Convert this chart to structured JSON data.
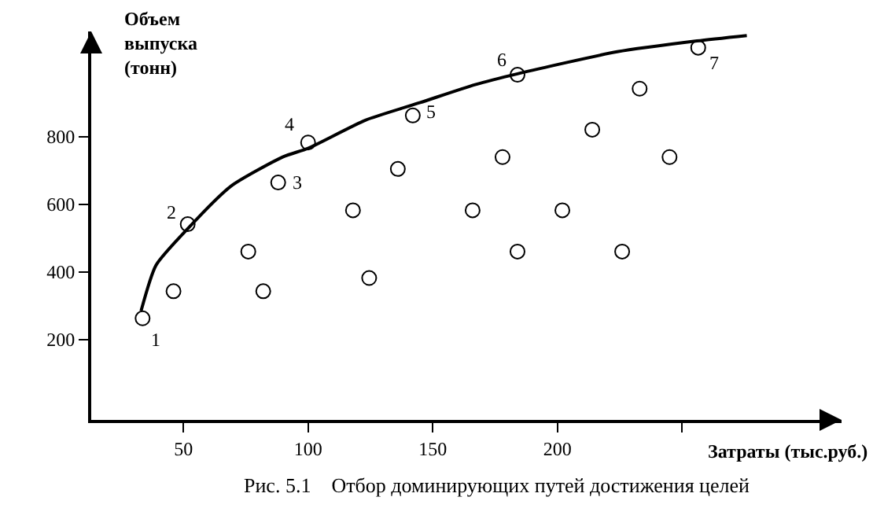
{
  "chart_data": {
    "type": "scatter",
    "xlabel": "Затраты (тыс.руб.)",
    "ylabel": "Объем выпуска (тонн)",
    "xlim": [
      13,
      314
    ],
    "ylim": [
      -37,
      1110
    ],
    "xticks": [
      50,
      100,
      150,
      200,
      {
        "value": 250,
        "label": null
      }
    ],
    "yticks": [
      200,
      400,
      600,
      800
    ],
    "grid": false,
    "series": [
      {
        "type": "scatter",
        "color": "#000000",
        "marker": "circle",
        "x": [
          33.6,
          46,
          51.7,
          76,
          82,
          88,
          100,
          118,
          124.5,
          136,
          142,
          166,
          178,
          184,
          184,
          202,
          214,
          226,
          233,
          245,
          256.5
        ],
        "values": [
          263,
          343,
          541,
          460,
          343,
          664,
          782,
          582,
          382,
          704,
          862,
          582,
          739,
          982,
          460,
          582,
          820,
          460,
          941,
          739,
          1062
        ]
      },
      {
        "type": "line",
        "color": "#000000",
        "marker": "none",
        "line_style": "solid",
        "x": [
          33,
          39,
          52,
          69,
          90,
          100,
          123,
          145,
          167,
          184,
          224,
          256,
          276
        ],
        "values": [
          285,
          420,
          530,
          653,
          740,
          765,
          848,
          900,
          953,
          985,
          1050,
          1082,
          1098
        ]
      }
    ],
    "annotations": [
      {
        "text": "1",
        "x": 33.6,
        "y": 263
      },
      {
        "text": "2",
        "x": 51.7,
        "y": 541
      },
      {
        "text": "3",
        "x": 88,
        "y": 664
      },
      {
        "text": "4",
        "x": 100,
        "y": 782
      },
      {
        "text": "5",
        "x": 142,
        "y": 862
      },
      {
        "text": "6",
        "x": 184,
        "y": 982
      },
      {
        "text": "7",
        "x": 256.5,
        "y": 1062
      },
      "Рис. 5.1    Отбор доминирующих путей достижения целей"
    ]
  }
}
